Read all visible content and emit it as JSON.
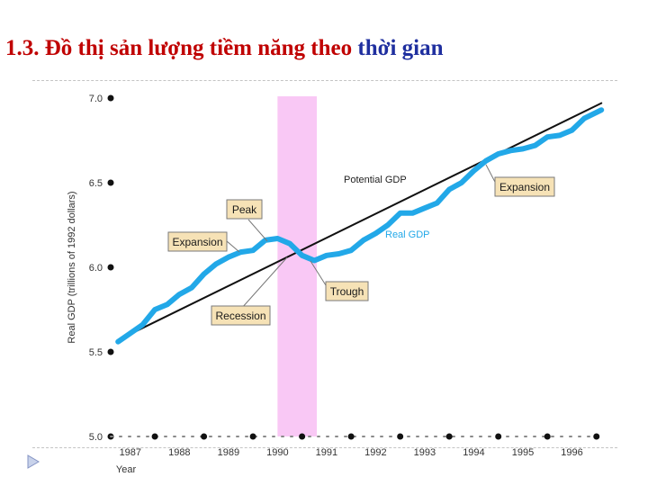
{
  "title": {
    "part1": "1.3. Đồ thị sản lượng tiềm năng theo ",
    "part2": "thời gian"
  },
  "colors": {
    "title_red": "#c00000",
    "title_blue": "#1f2f9f",
    "real_gdp": "#22a8e8",
    "potential_gdp": "#111111",
    "recession_band": "#f9c8f5",
    "label_box": "#f6e2b6"
  },
  "chart_data": {
    "type": "line",
    "xlabel": "Year",
    "ylabel": "Real GDP (trillions of 1992 dollars)",
    "xlim": [
      1986.6,
      1997.0
    ],
    "ylim": [
      5.0,
      7.0
    ],
    "x_ticks": [
      1987,
      1988,
      1989,
      1990,
      1991,
      1992,
      1993,
      1994,
      1995,
      1996
    ],
    "y_ticks": [
      "5.0",
      "5.5",
      "6.0",
      "6.5",
      "7.0"
    ],
    "grid": false,
    "recession_band": [
      1990.0,
      1990.8
    ],
    "series": [
      {
        "name": "Potential GDP",
        "color": "#111111",
        "x": [
          1986.75,
          1996.6
        ],
        "y": [
          5.57,
          6.97
        ]
      },
      {
        "name": "Real GDP",
        "color": "#22a8e8",
        "x": [
          1986.75,
          1987.0,
          1987.25,
          1987.5,
          1987.75,
          1988.0,
          1988.25,
          1988.5,
          1988.75,
          1989.0,
          1989.25,
          1989.5,
          1989.75,
          1990.0,
          1990.25,
          1990.5,
          1990.75,
          1991.0,
          1991.25,
          1991.5,
          1991.75,
          1992.0,
          1992.25,
          1992.5,
          1992.75,
          1993.0,
          1993.25,
          1993.5,
          1993.75,
          1994.0,
          1994.25,
          1994.5,
          1994.75,
          1995.0,
          1995.25,
          1995.5,
          1995.75,
          1996.0,
          1996.25,
          1996.6
        ],
        "y": [
          5.56,
          5.61,
          5.66,
          5.75,
          5.78,
          5.84,
          5.88,
          5.96,
          6.02,
          6.06,
          6.09,
          6.1,
          6.16,
          6.17,
          6.14,
          6.07,
          6.04,
          6.07,
          6.08,
          6.1,
          6.16,
          6.2,
          6.25,
          6.32,
          6.32,
          6.35,
          6.38,
          6.46,
          6.5,
          6.57,
          6.63,
          6.67,
          6.69,
          6.7,
          6.72,
          6.77,
          6.78,
          6.81,
          6.88,
          6.93
        ]
      }
    ],
    "labels": {
      "potential_gdp": "Potential GDP",
      "real_gdp": "Real GDP"
    },
    "annotations": {
      "peak": "Peak",
      "expansion_left": "Expansion",
      "expansion_right": "Expansion",
      "trough": "Trough",
      "recession": "Recession"
    }
  }
}
